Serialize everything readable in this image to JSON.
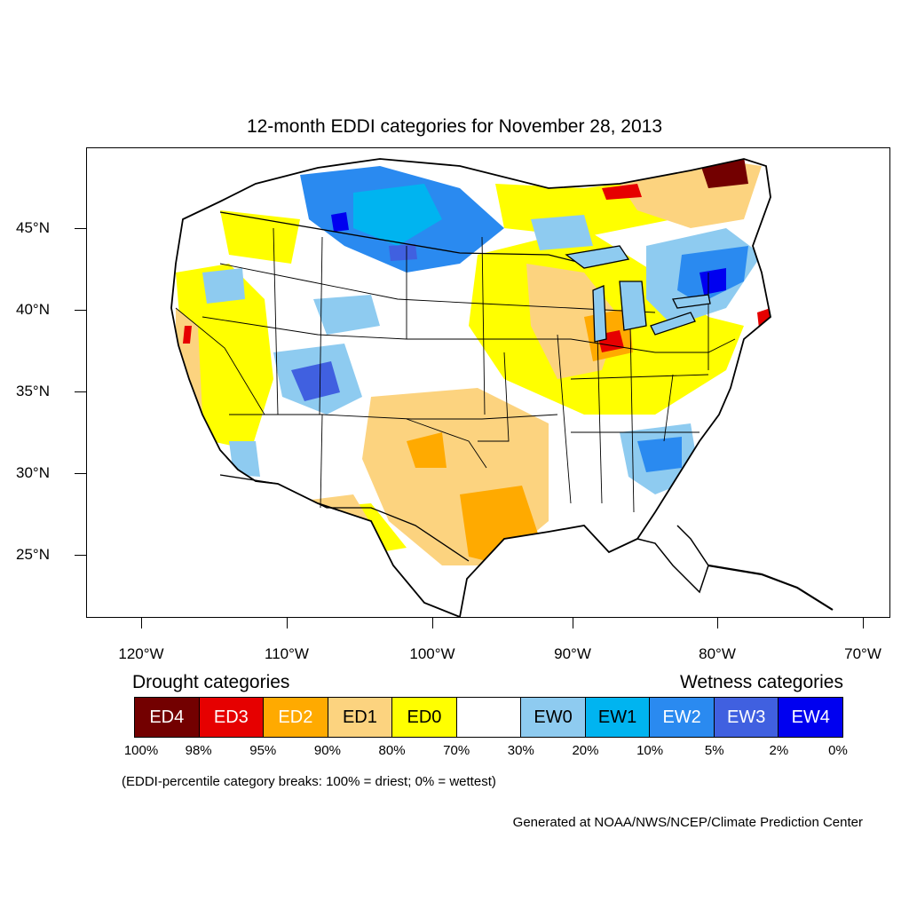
{
  "title": "12-month EDDI categories for November 28, 2013",
  "latitude_labels": [
    "45°N",
    "40°N",
    "35°N",
    "30°N",
    "25°N"
  ],
  "longitude_labels": [
    "120°W",
    "110°W",
    "100°W",
    "90°W",
    "80°W",
    "70°W"
  ],
  "legend": {
    "drought_heading": "Drought categories",
    "wetness_heading": "Wetness categories",
    "categories": [
      {
        "label": "ED4",
        "color": "#730000",
        "text_color": "#ffffff"
      },
      {
        "label": "ED3",
        "color": "#e60000",
        "text_color": "#ffffff"
      },
      {
        "label": "ED2",
        "color": "#ffaa00",
        "text_color": "#ffffff"
      },
      {
        "label": "ED1",
        "color": "#fcd37f",
        "text_color": "#000000"
      },
      {
        "label": "ED0",
        "color": "#ffff00",
        "text_color": "#000000"
      },
      {
        "label": "",
        "color": "#ffffff",
        "text_color": "#000000"
      },
      {
        "label": "EW0",
        "color": "#8ecbf0",
        "text_color": "#000000"
      },
      {
        "label": "EW1",
        "color": "#00b4f0",
        "text_color": "#000000"
      },
      {
        "label": "EW2",
        "color": "#2a8af0",
        "text_color": "#ffffff"
      },
      {
        "label": "EW3",
        "color": "#4060e0",
        "text_color": "#ffffff"
      },
      {
        "label": "EW4",
        "color": "#0000f0",
        "text_color": "#ffffff"
      }
    ],
    "breaks": [
      "100%",
      "98%",
      "95%",
      "90%",
      "80%",
      "70%",
      "30%",
      "20%",
      "10%",
      "5%",
      "2%",
      "0%"
    ]
  },
  "note": "(EDDI-percentile category breaks: 100% = driest; 0% = wettest)",
  "credit": "Generated at NOAA/NWS/NCEP/Climate Prediction Center"
}
